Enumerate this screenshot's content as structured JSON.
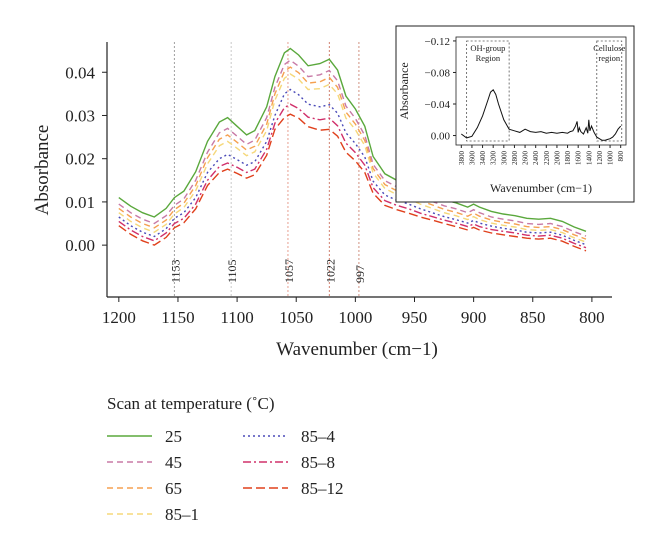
{
  "chart_data": [
    {
      "type": "line",
      "xlabel": "Wavenumber (cm−1)",
      "ylabel": "Absorbance",
      "xlim": [
        1210,
        783
      ],
      "ylim": [
        -0.012,
        0.047
      ],
      "xticks": [
        "1200",
        "1150",
        "1100",
        "1050",
        "1000",
        "950",
        "900",
        "850",
        "800"
      ],
      "yticks": [
        "0.00",
        "0.01",
        "0.02",
        "0.03",
        "0.04"
      ],
      "x_reversed": true,
      "grid": false,
      "legend_title": "Scan at temperature (˚C)",
      "legend_position": "bottom-left",
      "annotations": [
        {
          "x": 1153,
          "label": "1153",
          "color": "#a0a0a0"
        },
        {
          "x": 1105,
          "label": "1105",
          "color": "#c8c8c8"
        },
        {
          "x": 1057,
          "label": "1057",
          "color": "#e8a090"
        },
        {
          "x": 1022,
          "label": "1022",
          "color": "#d08070"
        },
        {
          "x": 997,
          "label": "997",
          "color": "#d09080"
        }
      ],
      "x": [
        1200,
        1190,
        1180,
        1170,
        1160,
        1153,
        1145,
        1135,
        1125,
        1115,
        1108,
        1100,
        1092,
        1085,
        1075,
        1068,
        1060,
        1055,
        1048,
        1040,
        1030,
        1022,
        1015,
        1008,
        1000,
        992,
        985,
        975,
        965,
        955,
        945,
        935,
        925,
        915,
        905,
        900,
        895,
        885,
        875,
        865,
        855,
        845,
        835,
        825,
        815,
        805
      ],
      "series": [
        {
          "name": "25",
          "color": "#5aa83c",
          "dash": "",
          "values": [
            0.011,
            0.009,
            0.0075,
            0.0065,
            0.0085,
            0.011,
            0.0125,
            0.017,
            0.024,
            0.0285,
            0.0295,
            0.0275,
            0.0255,
            0.0265,
            0.032,
            0.039,
            0.0445,
            0.0455,
            0.044,
            0.0415,
            0.042,
            0.043,
            0.0405,
            0.0345,
            0.0315,
            0.0275,
            0.0205,
            0.0165,
            0.015,
            0.014,
            0.0125,
            0.0115,
            0.0105,
            0.0098,
            0.0088,
            0.0095,
            0.0088,
            0.0078,
            0.0072,
            0.0068,
            0.0062,
            0.006,
            0.0062,
            0.0055,
            0.0042,
            0.0032
          ]
        },
        {
          "name": "45",
          "color": "#c87aa6",
          "dash": "6,4",
          "values": [
            0.0095,
            0.0075,
            0.006,
            0.005,
            0.0068,
            0.0092,
            0.0107,
            0.015,
            0.0215,
            0.026,
            0.027,
            0.0252,
            0.0233,
            0.0243,
            0.0295,
            0.0365,
            0.0418,
            0.0428,
            0.0414,
            0.039,
            0.0394,
            0.0404,
            0.038,
            0.0322,
            0.0293,
            0.0254,
            0.0187,
            0.0149,
            0.0135,
            0.0125,
            0.0111,
            0.0101,
            0.0091,
            0.0084,
            0.0075,
            0.0082,
            0.0075,
            0.0065,
            0.006,
            0.0056,
            0.005,
            0.0048,
            0.005,
            0.0043,
            0.0031,
            0.0021
          ]
        },
        {
          "name": "65",
          "color": "#f5a050",
          "dash": "6,4",
          "values": [
            0.0085,
            0.0065,
            0.005,
            0.004,
            0.0058,
            0.0082,
            0.0097,
            0.0138,
            0.0202,
            0.0245,
            0.0255,
            0.0238,
            0.022,
            0.0229,
            0.028,
            0.035,
            0.0402,
            0.0412,
            0.0399,
            0.0375,
            0.0378,
            0.0388,
            0.0365,
            0.0308,
            0.028,
            0.0242,
            0.0177,
            0.014,
            0.0126,
            0.0116,
            0.0103,
            0.0093,
            0.0083,
            0.0076,
            0.0067,
            0.0074,
            0.0067,
            0.0058,
            0.0053,
            0.0049,
            0.0043,
            0.0041,
            0.0043,
            0.0036,
            0.0024,
            0.0014
          ]
        },
        {
          "name": "85–1",
          "color": "#f5d87a",
          "dash": "6,4",
          "values": [
            0.0075,
            0.0055,
            0.004,
            0.003,
            0.0048,
            0.0072,
            0.0087,
            0.0126,
            0.0188,
            0.023,
            0.024,
            0.0224,
            0.0207,
            0.0216,
            0.0265,
            0.0335,
            0.0386,
            0.0396,
            0.0384,
            0.036,
            0.0362,
            0.0372,
            0.035,
            0.0294,
            0.0267,
            0.023,
            0.0167,
            0.0131,
            0.0117,
            0.0107,
            0.0095,
            0.0085,
            0.0075,
            0.0068,
            0.0059,
            0.0066,
            0.0059,
            0.0051,
            0.0046,
            0.0042,
            0.0036,
            0.0034,
            0.0036,
            0.0029,
            0.0017,
            0.0007
          ]
        },
        {
          "name": "85–4",
          "color": "#4a4ab8",
          "dash": "2,3",
          "values": [
            0.0065,
            0.0045,
            0.003,
            0.002,
            0.0038,
            0.0062,
            0.0075,
            0.011,
            0.0168,
            0.02,
            0.021,
            0.0198,
            0.0185,
            0.0193,
            0.024,
            0.03,
            0.035,
            0.036,
            0.0348,
            0.0326,
            0.032,
            0.0325,
            0.0305,
            0.026,
            0.0235,
            0.0204,
            0.0148,
            0.0116,
            0.0104,
            0.0095,
            0.0084,
            0.0075,
            0.0066,
            0.0059,
            0.0051,
            0.0057,
            0.0051,
            0.0044,
            0.0039,
            0.0035,
            0.003,
            0.0028,
            0.003,
            0.0023,
            0.0011,
            0.0001
          ]
        },
        {
          "name": "85–8",
          "color": "#d0306a",
          "dash": "8,3,2,3",
          "values": [
            0.0055,
            0.0035,
            0.002,
            0.001,
            0.0028,
            0.005,
            0.0062,
            0.0095,
            0.015,
            0.0182,
            0.019,
            0.018,
            0.0168,
            0.0176,
            0.0222,
            0.0282,
            0.0318,
            0.0326,
            0.0316,
            0.0296,
            0.029,
            0.0294,
            0.0276,
            0.0236,
            0.0214,
            0.0185,
            0.0133,
            0.0103,
            0.0092,
            0.0084,
            0.0074,
            0.0066,
            0.0058,
            0.0051,
            0.0043,
            0.0049,
            0.0043,
            0.0036,
            0.0032,
            0.0028,
            0.0023,
            0.0021,
            0.0023,
            0.0016,
            0.0004,
            -0.0006
          ]
        },
        {
          "name": "85–12",
          "color": "#e0401c",
          "dash": "9,4",
          "values": [
            0.0045,
            0.0025,
            0.001,
            0.0,
            0.0018,
            0.004,
            0.0052,
            0.0084,
            0.0138,
            0.0168,
            0.0176,
            0.0166,
            0.0155,
            0.0163,
            0.0208,
            0.0268,
            0.0295,
            0.0303,
            0.0294,
            0.0274,
            0.0266,
            0.0268,
            0.0252,
            0.0215,
            0.0195,
            0.0168,
            0.012,
            0.0092,
            0.0082,
            0.0074,
            0.0065,
            0.0058,
            0.005,
            0.0043,
            0.0035,
            0.0041,
            0.0035,
            0.0028,
            0.0024,
            0.002,
            0.0016,
            0.0014,
            0.0016,
            0.0009,
            -0.0003,
            -0.0013
          ]
        }
      ]
    },
    {
      "type": "line",
      "xlabel": "Wavenumber (cm−1)",
      "ylabel": "Absorbance",
      "xlim": [
        3900,
        700
      ],
      "ylim": [
        0.012,
        -0.125
      ],
      "y_reversed": true,
      "xticks": [
        "3800",
        "3600",
        "3400",
        "3200",
        "3000",
        "2800",
        "2600",
        "2400",
        "2200",
        "2000",
        "1800",
        "1600",
        "1400",
        "1200",
        "1000",
        "800"
      ],
      "yticks": [
        "−0.12",
        "−0.08",
        "−0.04",
        "0.00"
      ],
      "regions": [
        {
          "label_lines": [
            "OH-group",
            "Region"
          ],
          "x_from": 3700,
          "x_to": 2900
        },
        {
          "label_lines": [
            "Cellulose",
            "region"
          ],
          "x_from": 1250,
          "x_to": 780
        }
      ],
      "series": [
        {
          "name": "",
          "color": "#111111",
          "x": [
            3800,
            3700,
            3600,
            3500,
            3400,
            3300,
            3250,
            3200,
            3150,
            3100,
            3000,
            2900,
            2800,
            2700,
            2600,
            2500,
            2400,
            2300,
            2200,
            2100,
            2000,
            1900,
            1800,
            1750,
            1700,
            1650,
            1620,
            1600,
            1580,
            1550,
            1500,
            1450,
            1420,
            1400,
            1380,
            1350,
            1300,
            1250,
            1200,
            1150,
            1100,
            1050,
            1000,
            950,
            900,
            850,
            800
          ],
          "values": [
            -0.002,
            0.003,
            0.001,
            -0.01,
            -0.025,
            -0.045,
            -0.055,
            -0.058,
            -0.052,
            -0.04,
            -0.02,
            -0.008,
            -0.006,
            -0.004,
            -0.008,
            -0.005,
            -0.004,
            -0.005,
            -0.003,
            -0.004,
            -0.003,
            -0.004,
            -0.003,
            -0.005,
            -0.006,
            -0.012,
            -0.018,
            -0.004,
            -0.01,
            -0.005,
            -0.002,
            -0.01,
            -0.003,
            -0.02,
            -0.006,
            -0.012,
            -0.004,
            0.002,
            0.004,
            0.006,
            0.006,
            0.005,
            0.004,
            0.002,
            -0.002,
            -0.008,
            -0.012
          ]
        }
      ]
    }
  ]
}
